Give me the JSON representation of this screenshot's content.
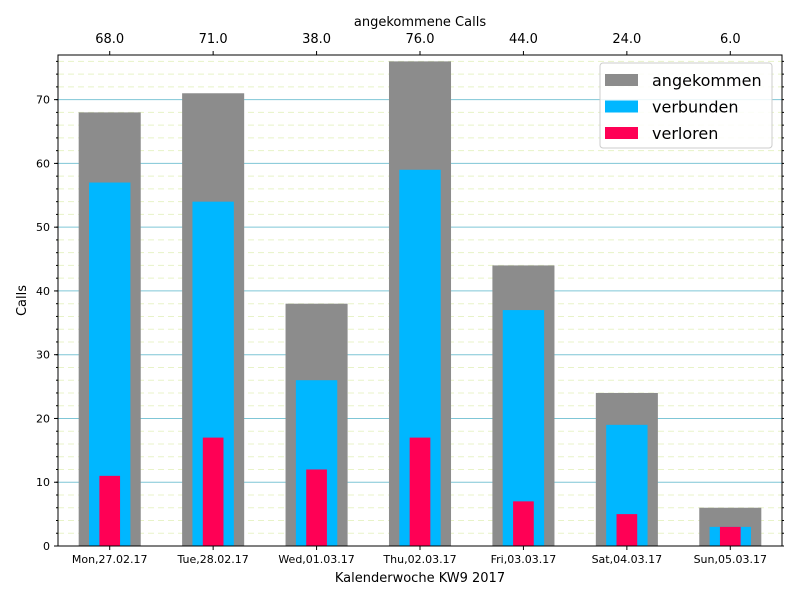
{
  "chart_data": {
    "type": "bar",
    "title": "",
    "xlabel": "Kalenderwoche KW9 2017",
    "ylabel": "Calls",
    "top_xlabel": "angekommene Calls",
    "categories": [
      "Mon,27.02.17",
      "Tue,28.02.17",
      "Wed,01.03.17",
      "Thu,02.03.17",
      "Fri,03.03.17",
      "Sat,04.03.17",
      "Sun,05.03.17"
    ],
    "top_tick_labels": [
      "68.0",
      "71.0",
      "38.0",
      "76.0",
      "44.0",
      "24.0",
      "6.0"
    ],
    "series": [
      {
        "name": "angekommen",
        "color": "#8c8c8c",
        "values": [
          68,
          71,
          38,
          76,
          44,
          24,
          6
        ]
      },
      {
        "name": "verbunden",
        "color": "#00b7ff",
        "values": [
          57,
          54,
          26,
          59,
          37,
          19,
          3
        ]
      },
      {
        "name": "verloren",
        "color": "#ff0055",
        "values": [
          11,
          17,
          12,
          17,
          7,
          5,
          3
        ]
      }
    ],
    "ylim": [
      0,
      77
    ],
    "yticks": [
      0,
      10,
      20,
      30,
      40,
      50,
      60,
      70
    ],
    "grid": true,
    "legend_position": "top-right"
  }
}
